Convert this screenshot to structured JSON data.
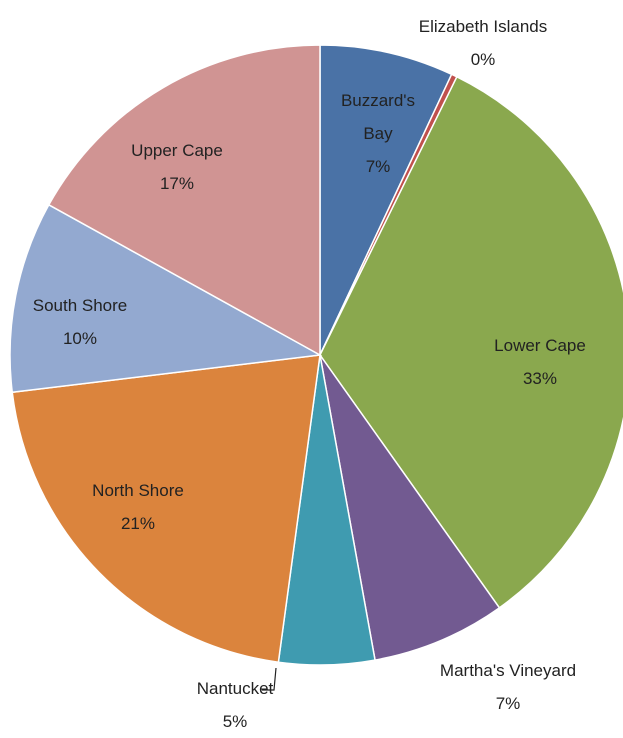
{
  "chart_data": {
    "type": "pie",
    "categories": [
      "Buzzard's Bay",
      "Elizabeth Islands",
      "Lower Cape",
      "Martha's Vineyard",
      "Nantucket",
      "North Shore",
      "South Shore",
      "Upper Cape"
    ],
    "values": [
      7,
      0.3,
      33,
      7,
      5,
      21,
      10,
      17
    ],
    "value_labels": [
      "7%",
      "0%",
      "33%",
      "7%",
      "5%",
      "21%",
      "10%",
      "17%"
    ],
    "colors": [
      "#4a72a6",
      "#c0504d",
      "#8aa84e",
      "#725a91",
      "#3f9bb0",
      "#db843d",
      "#93a9d0",
      "#d09493"
    ]
  }
}
